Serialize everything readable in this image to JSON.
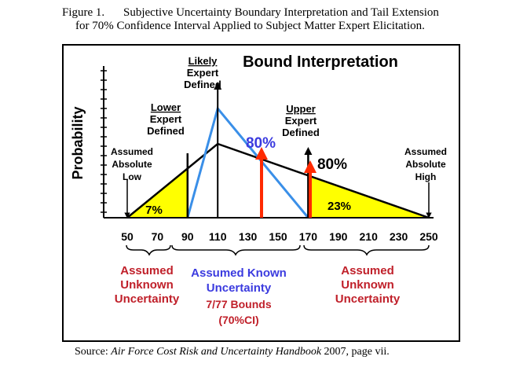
{
  "caption": {
    "figure_number": "Figure 1.",
    "line1": "Subjective Uncertainty Boundary Interpretation and Tail Extension",
    "line2": "for 70% Confidence Interval Applied to Subject Matter Expert Elicitation."
  },
  "source": {
    "prefix": "Source: ",
    "title": "Air Force Cost Risk and Uncertainty Handbook",
    "suffix": " 2007, page vii."
  },
  "chart_data": {
    "type": "diagram",
    "title": "Bound Interpretation",
    "ylabel": "Probability",
    "x_ticks": [
      "50",
      "70",
      "90",
      "110",
      "130",
      "150",
      "170",
      "190",
      "210",
      "230",
      "250"
    ],
    "x_values": [
      50,
      70,
      90,
      110,
      130,
      150,
      170,
      190,
      210,
      230,
      250
    ],
    "blue_triangle": {
      "low": 90,
      "mode": 110,
      "high": 170
    },
    "black_triangle": {
      "low": 50,
      "mode": 110,
      "high": 250
    },
    "labels": {
      "likely": [
        "Likely",
        "Expert",
        "Defined"
      ],
      "lower": [
        "Lower",
        "Expert",
        "Defined"
      ],
      "upper": [
        "Upper",
        "Expert",
        "Defined"
      ],
      "assumed_low": [
        "Assumed",
        "Absolute",
        "Low"
      ],
      "assumed_high": [
        "Assumed",
        "Absolute",
        "High"
      ],
      "pct_blue": "80%",
      "pct_black": "80%",
      "tail_left": "7%",
      "tail_right": "23%"
    },
    "regions": [
      {
        "name": "left",
        "lines": [
          "Assumed",
          "Unknown",
          "Uncertainty"
        ]
      },
      {
        "name": "middle",
        "lines": [
          "Assumed Known",
          "Uncertainty",
          "7/77 Bounds",
          "(70%CI)"
        ]
      },
      {
        "name": "right",
        "lines": [
          "Assumed",
          "Unknown",
          "Uncertainty"
        ]
      }
    ],
    "colors": {
      "blue": "#3a8fe8",
      "tail_fill": "#ffff00",
      "red_arrow": "#ff2a00",
      "text_blue": "#3b3bdf",
      "text_red": "#c0202a"
    }
  }
}
